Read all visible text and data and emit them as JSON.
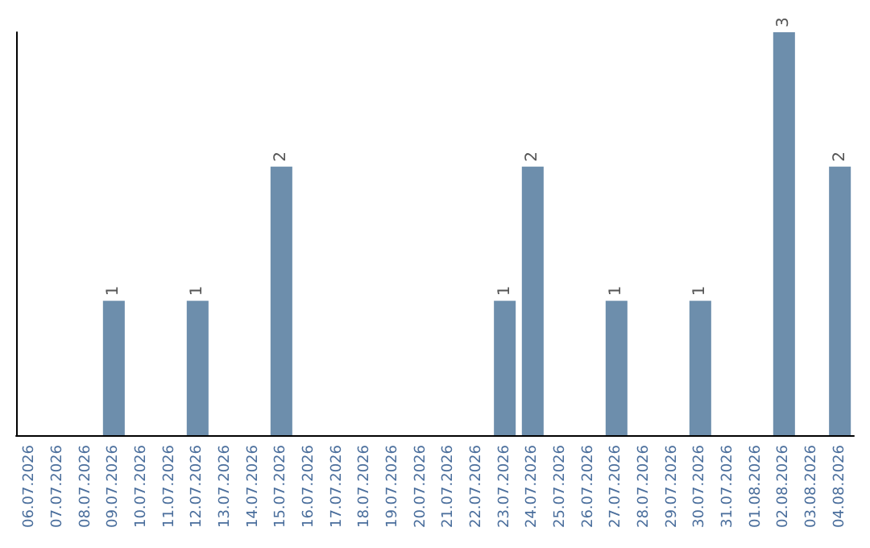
{
  "chart_data": {
    "type": "bar",
    "categories": [
      "06.07.2026",
      "07.07.2026",
      "08.07.2026",
      "09.07.2026",
      "10.07.2026",
      "11.07.2026",
      "12.07.2026",
      "13.07.2026",
      "14.07.2026",
      "15.07.2026",
      "16.07.2026",
      "17.07.2026",
      "18.07.2026",
      "19.07.2026",
      "20.07.2026",
      "21.07.2026",
      "22.07.2026",
      "23.07.2026",
      "24.07.2026",
      "25.07.2026",
      "26.07.2026",
      "27.07.2026",
      "28.07.2026",
      "29.07.2026",
      "30.07.2026",
      "31.07.2026",
      "01.08.2026",
      "02.08.2026",
      "03.08.2026",
      "04.08.2026"
    ],
    "values": [
      0,
      0,
      0,
      1,
      0,
      0,
      1,
      0,
      0,
      2,
      0,
      0,
      0,
      0,
      0,
      0,
      0,
      1,
      2,
      0,
      0,
      1,
      0,
      0,
      1,
      0,
      0,
      3,
      0,
      2
    ],
    "value_labels": [
      null,
      null,
      null,
      "1",
      null,
      null,
      "1",
      null,
      null,
      "2",
      null,
      null,
      null,
      null,
      null,
      null,
      null,
      "1",
      "2",
      null,
      null,
      "1",
      null,
      null,
      "1",
      null,
      null,
      "3",
      null,
      "2"
    ],
    "color": "#6d8eac"
  }
}
